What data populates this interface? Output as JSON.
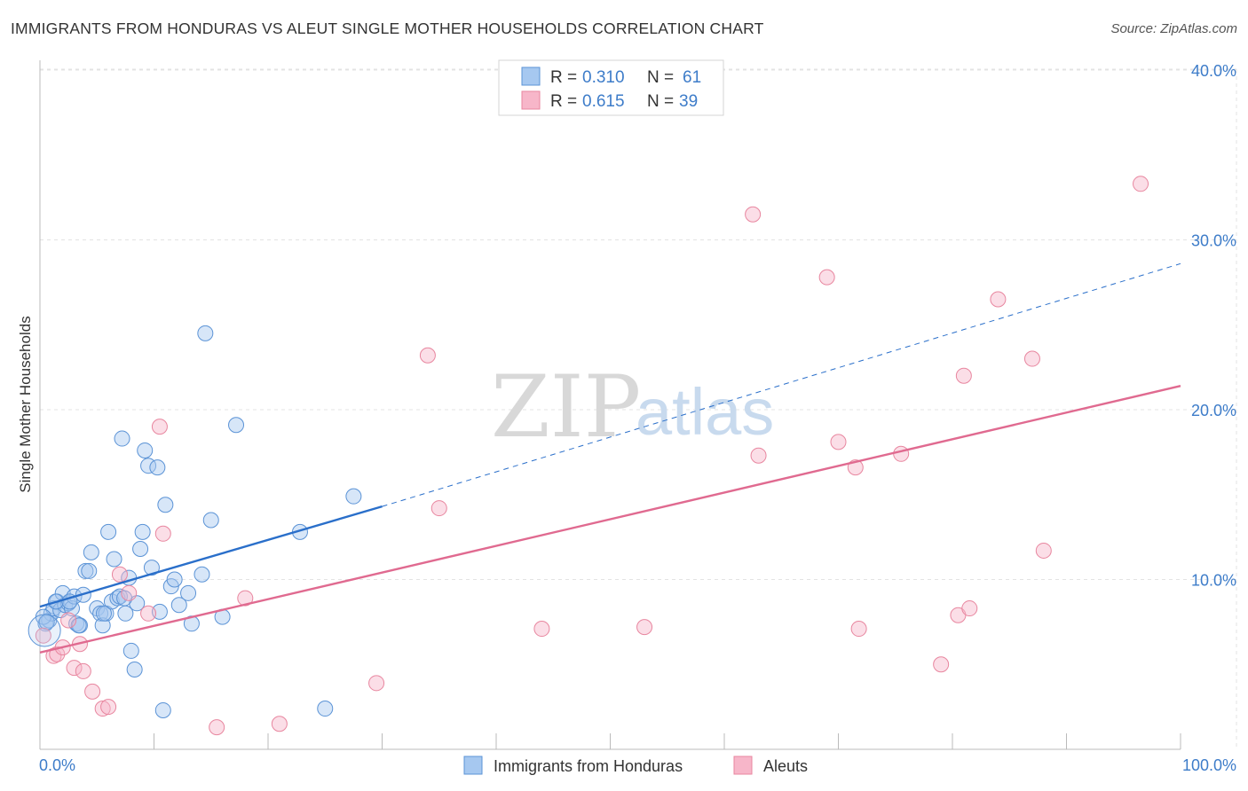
{
  "title": "IMMIGRANTS FROM HONDURAS VS ALEUT SINGLE MOTHER HOUSEHOLDS CORRELATION CHART",
  "source": "Source: ZipAtlas.com",
  "watermark": {
    "part1": "ZIP",
    "part2": "atlas"
  },
  "legend_box": {
    "rows": [
      {
        "r_label": "R = ",
        "r_value": "0.310",
        "n_label": "N = ",
        "n_value": "61",
        "color": "#a6c8f0"
      },
      {
        "r_label": "R = ",
        "r_value": "0.615",
        "n_label": "N = ",
        "n_value": "39",
        "color": "#f7b6c9"
      }
    ]
  },
  "bottom_legend": [
    {
      "label": "Immigrants from Honduras",
      "color": "#a6c8f0"
    },
    {
      "label": "Aleuts",
      "color": "#f7b6c9"
    }
  ],
  "chart_data": {
    "type": "scatter",
    "ylabel": "Single Mother Households",
    "xlabel": "",
    "xlim": [
      0,
      100
    ],
    "ylim": [
      0,
      40
    ],
    "x_tick_labels": [
      "0.0%",
      "100.0%"
    ],
    "y_ticks": [
      {
        "value": 10,
        "label": "10.0%"
      },
      {
        "value": 20,
        "label": "20.0%"
      },
      {
        "value": 30,
        "label": "30.0%"
      },
      {
        "value": 40,
        "label": "40.0%"
      }
    ],
    "grid": true,
    "series": [
      {
        "name": "Immigrants from Honduras",
        "color": "#5b93d6",
        "fill": "#a6c8f0",
        "trend_color": "#2a6fca",
        "trend": {
          "x0": 0,
          "y0": 8.4,
          "x1": 30,
          "y1": 14.3,
          "dash_to": 100,
          "dash_y": 28.6
        },
        "points": [
          [
            0.5,
            7.4
          ],
          [
            0.8,
            7.6
          ],
          [
            1.0,
            8.0
          ],
          [
            1.2,
            8.3
          ],
          [
            1.5,
            8.7
          ],
          [
            1.8,
            8.2
          ],
          [
            2.0,
            9.2
          ],
          [
            2.2,
            8.5
          ],
          [
            2.5,
            8.6
          ],
          [
            2.8,
            8.3
          ],
          [
            3.0,
            9.0
          ],
          [
            3.2,
            7.4
          ],
          [
            3.5,
            7.3
          ],
          [
            3.8,
            9.1
          ],
          [
            4.0,
            10.5
          ],
          [
            4.3,
            10.5
          ],
          [
            4.5,
            11.6
          ],
          [
            5.0,
            8.3
          ],
          [
            5.3,
            8.0
          ],
          [
            5.5,
            7.3
          ],
          [
            5.8,
            8.0
          ],
          [
            6.0,
            12.8
          ],
          [
            6.3,
            8.7
          ],
          [
            6.5,
            11.2
          ],
          [
            6.8,
            8.9
          ],
          [
            7.0,
            9.0
          ],
          [
            7.2,
            18.3
          ],
          [
            7.5,
            8.0
          ],
          [
            7.8,
            10.1
          ],
          [
            8.0,
            5.8
          ],
          [
            8.3,
            4.7
          ],
          [
            8.5,
            8.6
          ],
          [
            8.8,
            11.8
          ],
          [
            9.0,
            12.8
          ],
          [
            9.2,
            17.6
          ],
          [
            9.5,
            16.7
          ],
          [
            9.8,
            10.7
          ],
          [
            10.3,
            16.6
          ],
          [
            10.5,
            8.1
          ],
          [
            10.8,
            2.3
          ],
          [
            11.0,
            14.4
          ],
          [
            11.5,
            9.6
          ],
          [
            11.8,
            10.0
          ],
          [
            12.2,
            8.5
          ],
          [
            13.0,
            9.2
          ],
          [
            13.3,
            7.4
          ],
          [
            14.2,
            10.3
          ],
          [
            14.5,
            24.5
          ],
          [
            15.0,
            13.5
          ],
          [
            16.0,
            7.8
          ],
          [
            17.2,
            19.1
          ],
          [
            22.8,
            12.8
          ],
          [
            25.0,
            2.4
          ],
          [
            27.5,
            14.9
          ],
          [
            0.3,
            7.8
          ],
          [
            0.6,
            7.5
          ],
          [
            1.4,
            8.7
          ],
          [
            2.6,
            8.7
          ],
          [
            3.4,
            7.3
          ],
          [
            5.6,
            8.0
          ],
          [
            7.4,
            8.9
          ]
        ]
      },
      {
        "name": "Aleuts",
        "color": "#e8869f",
        "fill": "#f7b6c9",
        "trend_color": "#e06a90",
        "trend": {
          "x0": 0,
          "y0": 5.7,
          "x1": 100,
          "y1": 21.4
        },
        "points": [
          [
            0.3,
            6.7
          ],
          [
            1.2,
            5.5
          ],
          [
            1.5,
            5.6
          ],
          [
            2.0,
            6.0
          ],
          [
            2.5,
            7.6
          ],
          [
            3.0,
            4.8
          ],
          [
            3.5,
            6.2
          ],
          [
            3.8,
            4.6
          ],
          [
            4.6,
            3.4
          ],
          [
            5.5,
            2.4
          ],
          [
            6.0,
            2.5
          ],
          [
            7.0,
            10.3
          ],
          [
            7.8,
            9.2
          ],
          [
            9.5,
            8.0
          ],
          [
            10.5,
            19.0
          ],
          [
            10.8,
            12.7
          ],
          [
            15.5,
            1.3
          ],
          [
            18.0,
            8.9
          ],
          [
            21.0,
            1.5
          ],
          [
            29.5,
            3.9
          ],
          [
            34.0,
            23.2
          ],
          [
            35.0,
            14.2
          ],
          [
            44.0,
            7.1
          ],
          [
            53.0,
            7.2
          ],
          [
            62.5,
            31.5
          ],
          [
            63.0,
            17.3
          ],
          [
            69.0,
            27.8
          ],
          [
            70.0,
            18.1
          ],
          [
            71.5,
            16.6
          ],
          [
            71.8,
            7.1
          ],
          [
            75.5,
            17.4
          ],
          [
            79.0,
            5.0
          ],
          [
            80.5,
            7.9
          ],
          [
            81.0,
            22.0
          ],
          [
            81.5,
            8.3
          ],
          [
            84.0,
            26.5
          ],
          [
            87.0,
            23.0
          ],
          [
            88.0,
            11.7
          ],
          [
            96.5,
            33.3
          ]
        ]
      }
    ]
  }
}
